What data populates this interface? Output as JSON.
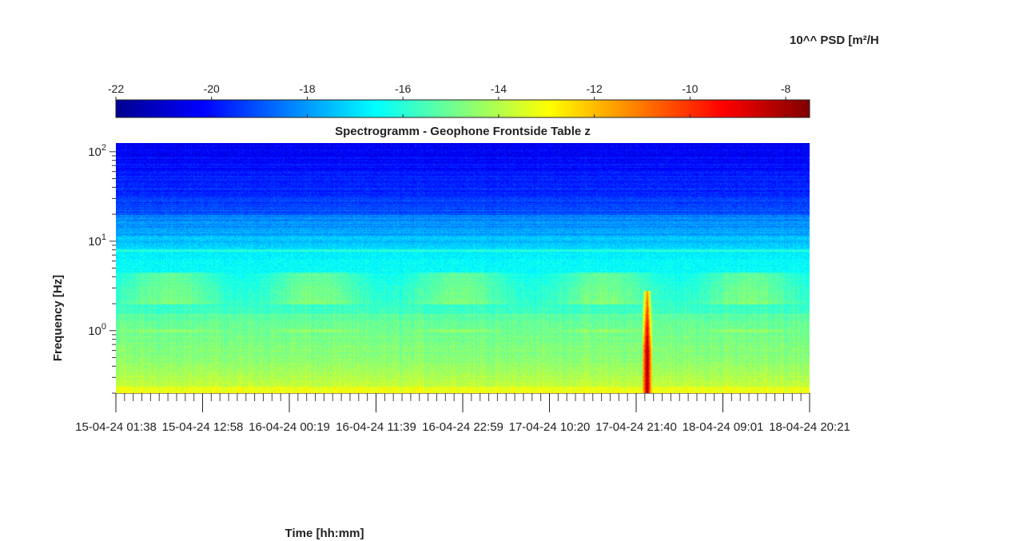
{
  "chart_data": {
    "type": "heatmap",
    "title": "Spectrogramm - Geophone Frontside Table z",
    "xlabel": "Time [hh:mm]",
    "ylabel": "Frequency [Hz]",
    "colorbar": {
      "label": "10^^ PSD [m²/H",
      "range": [
        -22,
        -7.5
      ],
      "ticks": [
        "-22",
        "-20",
        "-18",
        "-16",
        "-14",
        "-12",
        "-10",
        "-8"
      ],
      "tick_values": [
        -22,
        -20,
        -18,
        -16,
        -14,
        -12,
        -10,
        -8
      ],
      "colormap": "jet"
    },
    "y_axis": {
      "scale": "log",
      "range": [
        0.2,
        125
      ],
      "tick_values": [
        1,
        10,
        100
      ],
      "tick_labels": [
        {
          "base": "10",
          "exp": "0"
        },
        {
          "base": "10",
          "exp": "1"
        },
        {
          "base": "10",
          "exp": "2"
        }
      ]
    },
    "x_axis": {
      "range_hours": [
        0,
        115
      ],
      "tick_labels": [
        "15-04-24  01:38",
        "15-04-24  12:58",
        "16-04-24  00:19",
        "16-04-24  11:39",
        "16-04-24  22:59",
        "17-04-24  10:20",
        "17-04-24  21:40",
        "18-04-24  09:01",
        "18-04-24  20:21"
      ]
    },
    "features": {
      "event_time_hours": 88.0,
      "event_peak_log10_psd": -7.8,
      "low_freq_band_log10_psd": -13.3,
      "high_freq_level_log10_psd": -20.5
    }
  }
}
